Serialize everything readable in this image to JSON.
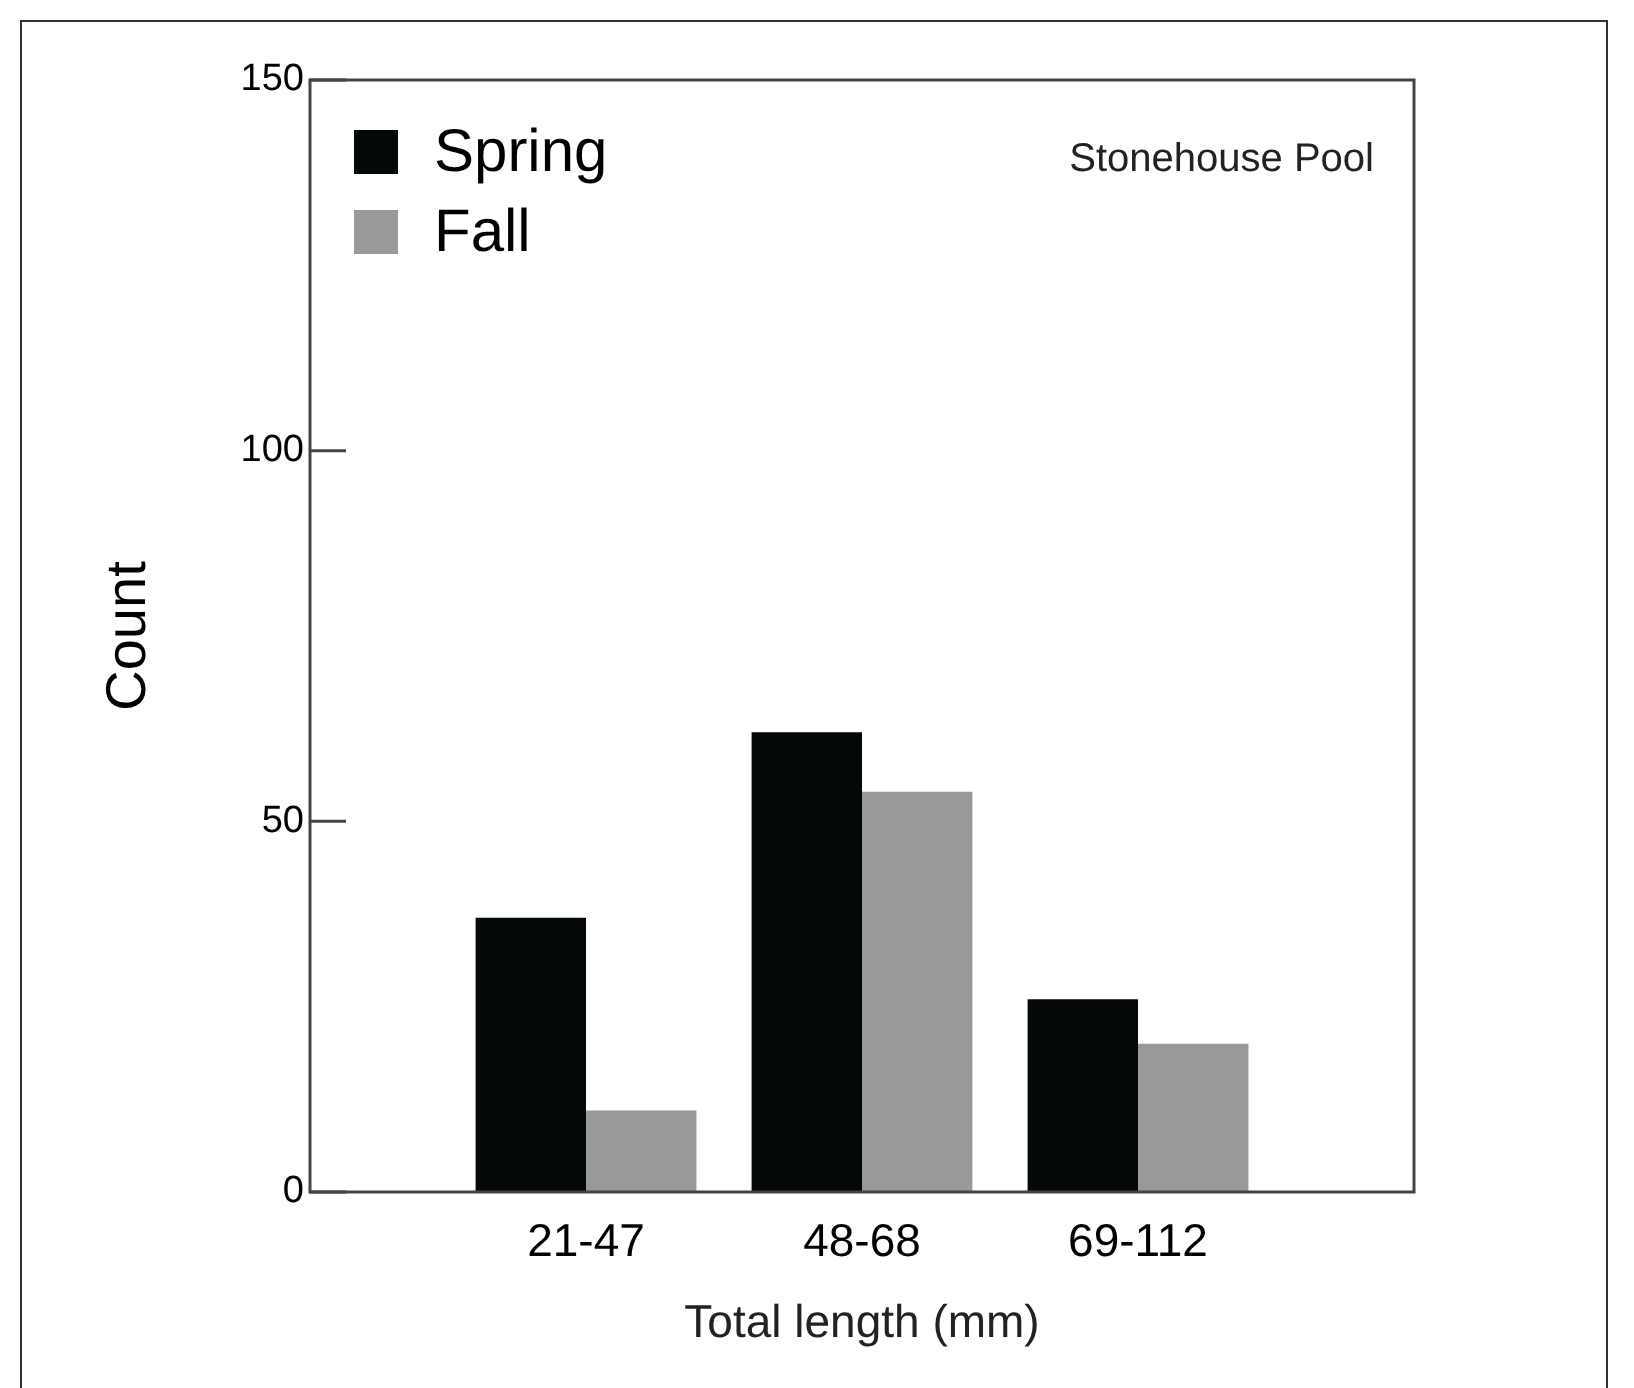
{
  "chart_data": {
    "type": "bar",
    "xlabel": "Total length (mm)",
    "ylabel": "Count",
    "categories": [
      null,
      "21-47",
      "48-68",
      "69-112",
      null
    ],
    "series": [
      {
        "name": "Spring",
        "color": "#050808",
        "values": [
          null,
          37,
          62,
          26,
          null
        ]
      },
      {
        "name": "Fall",
        "color": "#999999",
        "values": [
          null,
          11,
          54,
          20,
          null
        ]
      }
    ],
    "ylim": [
      0,
      150
    ],
    "yticks": [
      0,
      50,
      100,
      150
    ],
    "grid": false,
    "legend": "top left",
    "annotations": [
      "Stonehouse Pool"
    ]
  }
}
